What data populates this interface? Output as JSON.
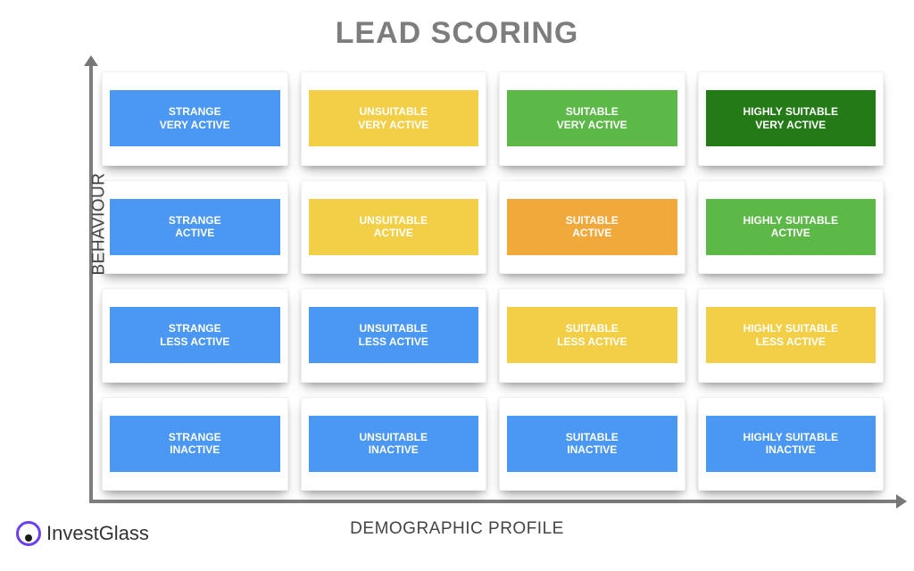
{
  "title": "LEAD SCORING",
  "title_color": "#7d7d7d",
  "title_fontsize": 34,
  "y_axis_label": "BEHAVIOUR",
  "x_axis_label": "DEMOGRAPHIC PROFILE",
  "axis_label_color": "#444444",
  "axis_label_fontsize": 19,
  "axis_line_color": "#7d7d7d",
  "background_color": "#ffffff",
  "card_label_fontsize": 12,
  "brand": {
    "name": "InvestGlass",
    "ring_color": "#6b3ff2",
    "dot_color": "#1a1a1a",
    "text_color": "#333333"
  },
  "palette": {
    "blue": "#4a97f4",
    "yellow": "#f3cf47",
    "orange": "#f2a93c",
    "green": "#5cb948",
    "darkgreen": "#247a17"
  },
  "grid": {
    "cols": 4,
    "rows": 4,
    "cells": [
      [
        {
          "line1": "STRANGE",
          "line2": "VERY ACTIVE",
          "color": "#4a97f4"
        },
        {
          "line1": "UNSUITABLE",
          "line2": "VERY ACTIVE",
          "color": "#f3cf47"
        },
        {
          "line1": "SUITABLE",
          "line2": "VERY ACTIVE",
          "color": "#5cb948"
        },
        {
          "line1": "HIGHLY SUITABLE",
          "line2": "VERY ACTIVE",
          "color": "#247a17"
        }
      ],
      [
        {
          "line1": "STRANGE",
          "line2": "ACTIVE",
          "color": "#4a97f4"
        },
        {
          "line1": "UNSUITABLE",
          "line2": "ACTIVE",
          "color": "#f3cf47"
        },
        {
          "line1": "SUITABLE",
          "line2": "ACTIVE",
          "color": "#f2a93c"
        },
        {
          "line1": "HIGHLY SUITABLE",
          "line2": "ACTIVE",
          "color": "#5cb948"
        }
      ],
      [
        {
          "line1": "STRANGE",
          "line2": "LESS ACTIVE",
          "color": "#4a97f4"
        },
        {
          "line1": "UNSUITABLE",
          "line2": "LESS ACTIVE",
          "color": "#4a97f4"
        },
        {
          "line1": "SUITABLE",
          "line2": "LESS ACTIVE",
          "color": "#f3cf47"
        },
        {
          "line1": "HIGHLY SUITABLE",
          "line2": "LESS ACTIVE",
          "color": "#f3cf47"
        }
      ],
      [
        {
          "line1": "STRANGE",
          "line2": "INACTIVE",
          "color": "#4a97f4"
        },
        {
          "line1": "UNSUITABLE",
          "line2": "INACTIVE",
          "color": "#4a97f4"
        },
        {
          "line1": "SUITABLE",
          "line2": "INACTIVE",
          "color": "#4a97f4"
        },
        {
          "line1": "HIGHLY SUITABLE",
          "line2": "INACTIVE",
          "color": "#4a97f4"
        }
      ]
    ]
  }
}
